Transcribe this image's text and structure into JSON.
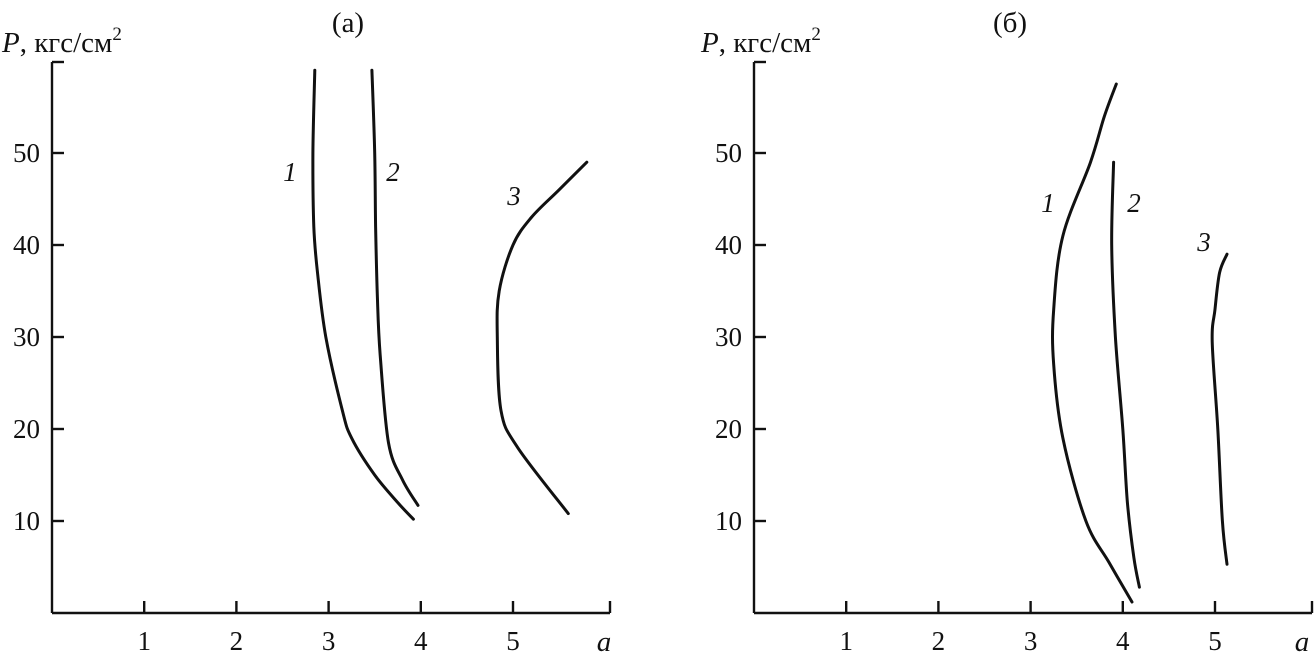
{
  "chart_data": [
    {
      "type": "line",
      "title": "(а)",
      "ylabel_var": "P",
      "ylabel_unit": ", кгс/см",
      "ylabel_sup": "2",
      "xlabel": "a",
      "xlim": [
        0,
        6
      ],
      "ylim": [
        0,
        60
      ],
      "x_ticks": [
        "1",
        "2",
        "3",
        "4",
        "5"
      ],
      "y_ticks": [
        "10",
        "20",
        "30",
        "40",
        "50"
      ],
      "grid": false,
      "series": [
        {
          "name": "1",
          "points": [
            [
              2.85,
              59
            ],
            [
              2.83,
              50
            ],
            [
              2.84,
              42
            ],
            [
              2.88,
              37
            ],
            [
              2.97,
              30
            ],
            [
              3.15,
              22
            ],
            [
              3.25,
              19
            ],
            [
              3.5,
              15
            ],
            [
              3.75,
              12
            ],
            [
              3.92,
              10.2
            ]
          ]
        },
        {
          "name": "2",
          "points": [
            [
              3.47,
              59
            ],
            [
              3.5,
              50
            ],
            [
              3.51,
              42
            ],
            [
              3.53,
              34
            ],
            [
              3.56,
              28
            ],
            [
              3.65,
              18.5
            ],
            [
              3.8,
              14.5
            ],
            [
              3.97,
              11.7
            ]
          ]
        },
        {
          "name": "3",
          "points": [
            [
              5.8,
              49
            ],
            [
              5.5,
              46
            ],
            [
              5.2,
              43
            ],
            [
              5.0,
              40
            ],
            [
              4.85,
              35
            ],
            [
              4.83,
              30
            ],
            [
              4.87,
              22
            ],
            [
              5.05,
              18
            ],
            [
              5.6,
              10.8
            ]
          ]
        }
      ]
    },
    {
      "type": "line",
      "title": "(б)",
      "ylabel_var": "P",
      "ylabel_unit": ", кгс/см",
      "ylabel_sup": "2",
      "xlabel": "a",
      "xlim": [
        0,
        6
      ],
      "ylim": [
        0,
        60
      ],
      "x_ticks": [
        "1",
        "2",
        "3",
        "4",
        "5"
      ],
      "y_ticks": [
        "10",
        "20",
        "30",
        "40",
        "50"
      ],
      "grid": false,
      "series": [
        {
          "name": "1",
          "points": [
            [
              3.93,
              57.5
            ],
            [
              3.8,
              54
            ],
            [
              3.65,
              49
            ],
            [
              3.35,
              41
            ],
            [
              3.25,
              33
            ],
            [
              3.25,
              27
            ],
            [
              3.35,
              19
            ],
            [
              3.6,
              10
            ],
            [
              3.85,
              5.5
            ],
            [
              4.1,
              1.2
            ]
          ]
        },
        {
          "name": "2",
          "points": [
            [
              3.9,
              49
            ],
            [
              3.88,
              40
            ],
            [
              3.92,
              30
            ],
            [
              4.0,
              20
            ],
            [
              4.05,
              12
            ],
            [
              4.12,
              6
            ],
            [
              4.18,
              2.8
            ]
          ]
        },
        {
          "name": "3",
          "points": [
            [
              5.13,
              39
            ],
            [
              5.05,
              37
            ],
            [
              5.0,
              33
            ],
            [
              4.97,
              29.5
            ],
            [
              5.03,
              20
            ],
            [
              5.08,
              10
            ],
            [
              5.13,
              5.3
            ]
          ]
        }
      ]
    }
  ]
}
